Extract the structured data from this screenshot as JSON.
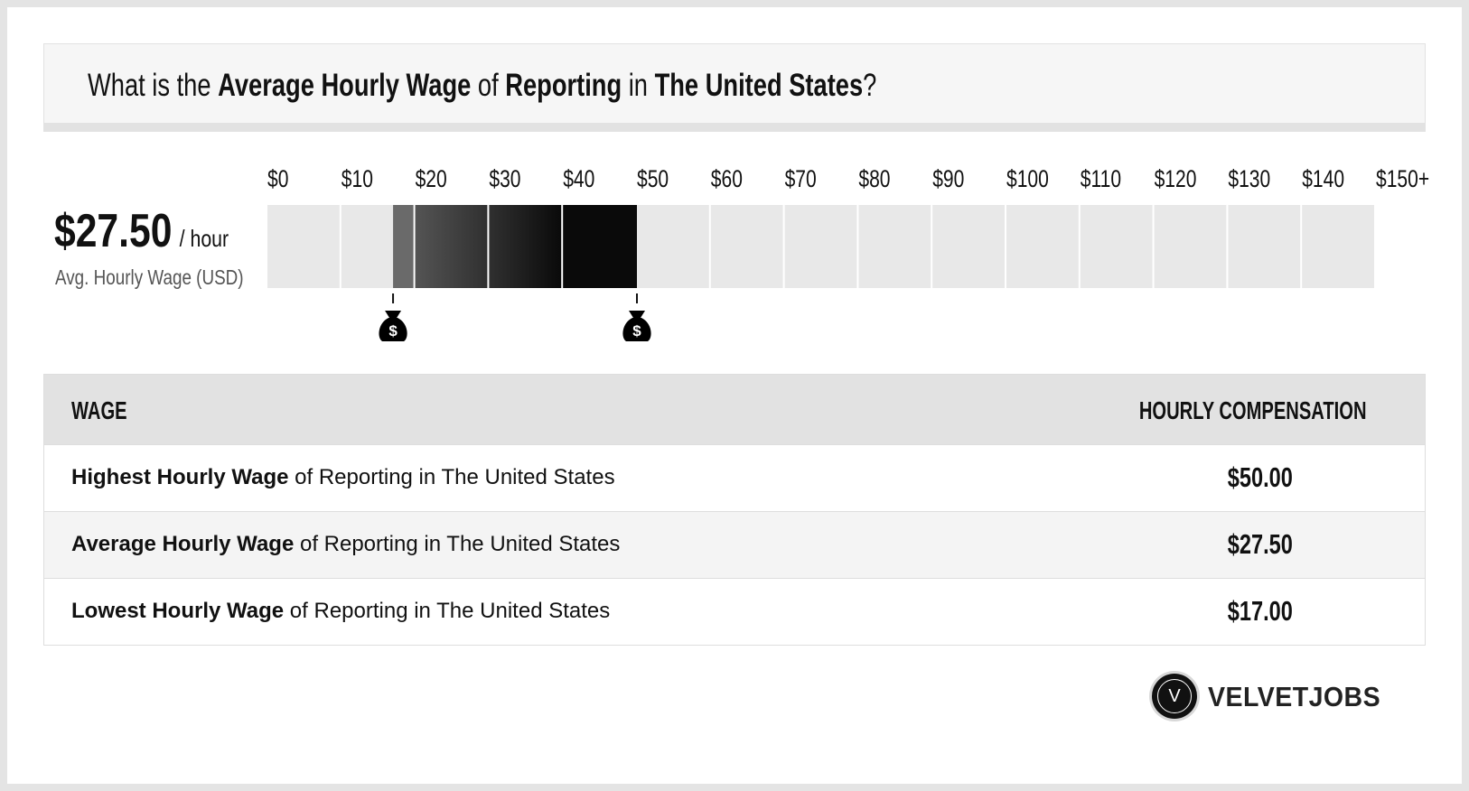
{
  "title": {
    "part1": "What is the ",
    "bold1": "Average Hourly Wage",
    "part2": " of ",
    "bold2": "Reporting",
    "part3": " in ",
    "bold3": "The United States",
    "part4": "?"
  },
  "summary": {
    "value": "$27.50",
    "unit": "/ hour",
    "label": "Avg. Hourly Wage (USD)"
  },
  "chart_data": {
    "type": "bar",
    "scale_ticks": [
      "$0",
      "$10",
      "$20",
      "$30",
      "$40",
      "$50",
      "$60",
      "$70",
      "$80",
      "$90",
      "$100",
      "$110",
      "$120",
      "$130",
      "$140",
      "$150+"
    ],
    "range_low": 17,
    "range_high": 50,
    "average": 27.5,
    "xlim": [
      0,
      150
    ],
    "band_colors": [
      "#6a6a6a",
      "#545454",
      "#303030",
      "#0a0a0a"
    ],
    "marker_icons": [
      "money-bag-icon",
      "money-bag-icon"
    ]
  },
  "table": {
    "header_left": "WAGE",
    "header_right": "HOURLY COMPENSATION",
    "rows": [
      {
        "bold": "Highest Hourly Wage",
        "rest": " of Reporting in The United States",
        "value": "$50.00"
      },
      {
        "bold": "Average Hourly Wage",
        "rest": " of Reporting in The United States",
        "value": "$27.50"
      },
      {
        "bold": "Lowest Hourly Wage",
        "rest": " of Reporting in The United States",
        "value": "$17.00"
      }
    ]
  },
  "brand": {
    "logo_letter": "V",
    "name": "VELVETJOBS"
  }
}
